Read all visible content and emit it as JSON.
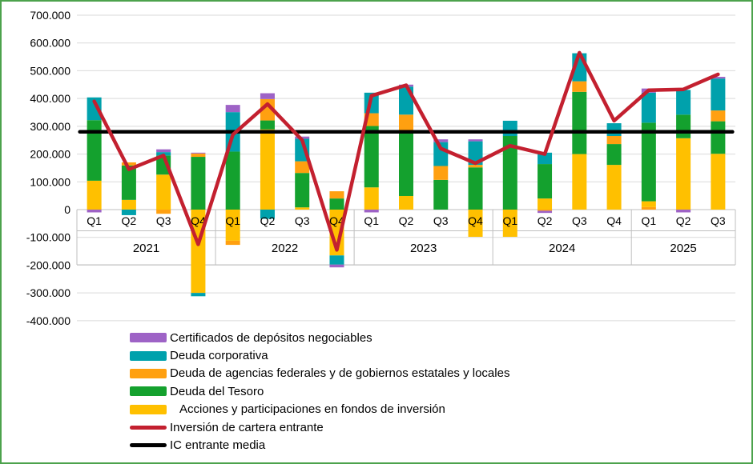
{
  "chart_data": {
    "type": "bar",
    "subtype": "stacked-bars-with-line-overlay",
    "value_unit_note": "axis shown in thousands with dot separators; 100 on internal scale = tick label 100.000",
    "y_axis": {
      "min": -400,
      "max": 700,
      "step": 100,
      "grid": true,
      "tick_values": [
        700,
        600,
        500,
        400,
        300,
        200,
        100,
        0,
        -100,
        -200,
        -300,
        -400
      ],
      "tick_labels": [
        "700.000",
        "600.000",
        "500.000",
        "400.000",
        "300.000",
        "200.000",
        "100.000",
        "0",
        "-100.000",
        "-200.000",
        "-300.000",
        "-400.000"
      ]
    },
    "series_info": {
      "cd": {
        "name": "Certificados de depósitos negociables",
        "color": "#9E63C6"
      },
      "dc": {
        "name": "Deuda corporativa",
        "color": "#00A1AC"
      },
      "da": {
        "name": "Deuda de agencias federales y de gobiernos estatales y locales",
        "color": "#FFA010"
      },
      "dt": {
        "name": "Deuda del Tesoro",
        "color": "#14A12E"
      },
      "ac": {
        "name": "Acciones y participaciones en fondos de inversión",
        "color": "#FFC000"
      }
    },
    "year_groups": [
      {
        "label": "2021",
        "quarters": 4
      },
      {
        "label": "2022",
        "quarters": 4
      },
      {
        "label": "2023",
        "quarters": 4
      },
      {
        "label": "2024",
        "quarters": 4
      },
      {
        "label": "2025",
        "quarters": 3
      }
    ],
    "bars": [
      {
        "year": "2021",
        "quarter": "Q1",
        "pos": [
          [
            "ac",
            104
          ],
          [
            "dt",
            218
          ],
          [
            "dc",
            82
          ]
        ],
        "neg": [
          [
            "cd",
            10
          ]
        ]
      },
      {
        "year": "2021",
        "quarter": "Q2",
        "pos": [
          [
            "ac",
            35
          ],
          [
            "dt",
            124
          ],
          [
            "da",
            11
          ]
        ],
        "neg": [
          [
            "dc",
            20
          ]
        ]
      },
      {
        "year": "2021",
        "quarter": "Q3",
        "pos": [
          [
            "ac",
            126
          ],
          [
            "dt",
            69
          ],
          [
            "dc",
            12
          ],
          [
            "cd",
            10
          ]
        ],
        "neg": [
          [
            "da",
            15
          ]
        ]
      },
      {
        "year": "2021",
        "quarter": "Q4",
        "pos": [
          [
            "dt",
            190
          ],
          [
            "da",
            12
          ],
          [
            "cd",
            3
          ]
        ],
        "neg": [
          [
            "ac",
            300
          ],
          [
            "dc",
            12
          ]
        ]
      },
      {
        "year": "2022",
        "quarter": "Q1",
        "pos": [
          [
            "dt",
            209
          ],
          [
            "dc",
            142
          ],
          [
            "cd",
            26
          ]
        ],
        "neg": [
          [
            "ac",
            112
          ],
          [
            "da",
            15
          ]
        ]
      },
      {
        "year": "2022",
        "quarter": "Q2",
        "pos": [
          [
            "ac",
            289
          ],
          [
            "dt",
            32
          ],
          [
            "da",
            77
          ],
          [
            "cd",
            21
          ]
        ],
        "neg": [
          [
            "dc",
            33
          ]
        ]
      },
      {
        "year": "2022",
        "quarter": "Q3",
        "pos": [
          [
            "ac",
            8
          ],
          [
            "dt",
            124
          ],
          [
            "da",
            42
          ],
          [
            "dc",
            81
          ],
          [
            "cd",
            8
          ]
        ],
        "neg": []
      },
      {
        "year": "2022",
        "quarter": "Q4",
        "pos": [
          [
            "dt",
            40
          ],
          [
            "da",
            26
          ]
        ],
        "neg": [
          [
            "ac",
            165
          ],
          [
            "dc",
            33
          ],
          [
            "cd",
            10
          ]
        ]
      },
      {
        "year": "2023",
        "quarter": "Q1",
        "pos": [
          [
            "ac",
            80
          ],
          [
            "dt",
            221
          ],
          [
            "da",
            46
          ],
          [
            "dc",
            74
          ]
        ],
        "neg": [
          [
            "cd",
            10
          ]
        ]
      },
      {
        "year": "2023",
        "quarter": "Q2",
        "pos": [
          [
            "ac",
            49
          ],
          [
            "dt",
            226
          ],
          [
            "da",
            67
          ],
          [
            "dc",
            101
          ],
          [
            "cd",
            7
          ]
        ],
        "neg": []
      },
      {
        "year": "2023",
        "quarter": "Q3",
        "pos": [
          [
            "dt",
            107
          ],
          [
            "da",
            50
          ],
          [
            "dc",
            86
          ],
          [
            "cd",
            10
          ]
        ],
        "neg": []
      },
      {
        "year": "2023",
        "quarter": "Q4",
        "pos": [
          [
            "dt",
            152
          ],
          [
            "da",
            9
          ],
          [
            "dc",
            85
          ],
          [
            "cd",
            7
          ]
        ],
        "neg": [
          [
            "ac",
            98
          ]
        ]
      },
      {
        "year": "2024",
        "quarter": "Q1",
        "pos": [
          [
            "dt",
            265
          ],
          [
            "dc",
            55
          ]
        ],
        "neg": [
          [
            "ac",
            98
          ]
        ]
      },
      {
        "year": "2024",
        "quarter": "Q2",
        "pos": [
          [
            "ac",
            40
          ],
          [
            "dt",
            124
          ],
          [
            "dc",
            41
          ]
        ],
        "neg": [
          [
            "da",
            4
          ],
          [
            "cd",
            8
          ]
        ]
      },
      {
        "year": "2024",
        "quarter": "Q3",
        "pos": [
          [
            "ac",
            200
          ],
          [
            "dt",
            224
          ],
          [
            "da",
            38
          ],
          [
            "dc",
            101
          ]
        ],
        "neg": []
      },
      {
        "year": "2024",
        "quarter": "Q4",
        "pos": [
          [
            "ac",
            161
          ],
          [
            "dt",
            75
          ],
          [
            "da",
            29
          ],
          [
            "dc",
            46
          ]
        ],
        "neg": []
      },
      {
        "year": "2025",
        "quarter": "Q1",
        "pos": [
          [
            "da",
            9
          ],
          [
            "ac",
            21
          ],
          [
            "dt",
            283
          ],
          [
            "dc",
            108
          ],
          [
            "cd",
            15
          ]
        ],
        "neg": []
      },
      {
        "year": "2025",
        "quarter": "Q2",
        "pos": [
          [
            "ac",
            257
          ],
          [
            "dt",
            85
          ],
          [
            "dc",
            89
          ]
        ],
        "neg": [
          [
            "cd",
            10
          ]
        ]
      },
      {
        "year": "2025",
        "quarter": "Q3",
        "pos": [
          [
            "ac",
            201
          ],
          [
            "dt",
            117
          ],
          [
            "da",
            39
          ],
          [
            "dc",
            115
          ],
          [
            "cd",
            6
          ]
        ],
        "neg": []
      }
    ],
    "line_series": {
      "name": "Inversión de cartera entrante",
      "color": "#C3202F",
      "values": [
        390,
        145,
        195,
        -125,
        270,
        380,
        250,
        -145,
        410,
        448,
        220,
        167,
        230,
        200,
        565,
        320,
        430,
        433,
        487
      ]
    },
    "mean_line": {
      "name": "IC entrante media",
      "color": "#000000",
      "value": 280
    }
  },
  "legend": {
    "items": [
      {
        "key": "cd",
        "type": "bar",
        "color": "#9E63C6",
        "label": "Certificados de depósitos negociables",
        "indent": false
      },
      {
        "key": "dc",
        "type": "bar",
        "color": "#00A1AC",
        "label": "Deuda corporativa",
        "indent": false
      },
      {
        "key": "da",
        "type": "bar",
        "color": "#FFA010",
        "label": "Deuda de agencias federales y de gobiernos estatales y locales",
        "indent": false
      },
      {
        "key": "dt",
        "type": "bar",
        "color": "#14A12E",
        "label": "Deuda del Tesoro",
        "indent": false
      },
      {
        "key": "ac",
        "type": "bar",
        "color": "#FFC000",
        "label": "Acciones y participaciones en fondos de inversión",
        "indent": true
      },
      {
        "key": "line",
        "type": "line",
        "color": "#C3202F",
        "label": "Inversión de cartera entrante",
        "indent": false
      },
      {
        "key": "mean",
        "type": "line",
        "color": "#000000",
        "label": "IC entrante media",
        "indent": false
      }
    ]
  },
  "style": {
    "grid_color": "#D9D9D9",
    "band_line_color": "#BFBFBF",
    "frame_border_color": "#4CA24C",
    "text_color": "#000000"
  }
}
